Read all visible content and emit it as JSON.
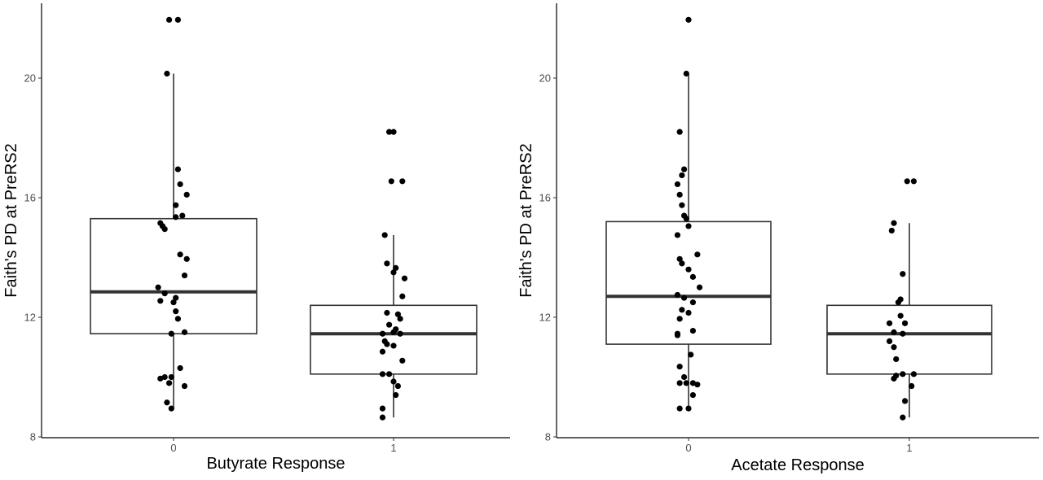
{
  "chart_data": [
    {
      "type": "box",
      "xlabel": "Butyrate Response",
      "ylabel": "Faith's PD at PreRS2",
      "ylim": [
        8,
        22.5
      ],
      "y_ticks": [
        "8",
        "12",
        "16",
        "20"
      ],
      "categories": [
        "0",
        "1"
      ],
      "boxes": [
        {
          "category": "0",
          "q1": 11.45,
          "median": 12.85,
          "q3": 15.3,
          "whisker_low": 8.95,
          "whisker_high": 20.15
        },
        {
          "category": "1",
          "q1": 10.1,
          "median": 11.45,
          "q3": 12.4,
          "whisker_low": 8.65,
          "whisker_high": 14.75
        }
      ],
      "points": [
        {
          "category": "0",
          "jitter": -0.02,
          "y": 21.95
        },
        {
          "category": "0",
          "jitter": 0.02,
          "y": 21.95
        },
        {
          "category": "0",
          "jitter": -0.03,
          "y": 20.15
        },
        {
          "category": "0",
          "jitter": 0.02,
          "y": 16.95
        },
        {
          "category": "0",
          "jitter": 0.03,
          "y": 16.45
        },
        {
          "category": "0",
          "jitter": 0.06,
          "y": 16.1
        },
        {
          "category": "0",
          "jitter": 0.01,
          "y": 15.75
        },
        {
          "category": "0",
          "jitter": 0.04,
          "y": 15.4
        },
        {
          "category": "0",
          "jitter": 0.01,
          "y": 15.35
        },
        {
          "category": "0",
          "jitter": -0.06,
          "y": 15.15
        },
        {
          "category": "0",
          "jitter": -0.05,
          "y": 15.05
        },
        {
          "category": "0",
          "jitter": -0.04,
          "y": 14.95
        },
        {
          "category": "0",
          "jitter": 0.03,
          "y": 14.1
        },
        {
          "category": "0",
          "jitter": 0.06,
          "y": 13.95
        },
        {
          "category": "0",
          "jitter": 0.05,
          "y": 13.4
        },
        {
          "category": "0",
          "jitter": -0.07,
          "y": 13.0
        },
        {
          "category": "0",
          "jitter": -0.04,
          "y": 12.8
        },
        {
          "category": "0",
          "jitter": 0.01,
          "y": 12.65
        },
        {
          "category": "0",
          "jitter": -0.06,
          "y": 12.55
        },
        {
          "category": "0",
          "jitter": 0.0,
          "y": 12.5
        },
        {
          "category": "0",
          "jitter": 0.01,
          "y": 12.2
        },
        {
          "category": "0",
          "jitter": 0.02,
          "y": 11.95
        },
        {
          "category": "0",
          "jitter": 0.05,
          "y": 11.5
        },
        {
          "category": "0",
          "jitter": -0.01,
          "y": 11.45
        },
        {
          "category": "0",
          "jitter": 0.03,
          "y": 10.3
        },
        {
          "category": "0",
          "jitter": -0.04,
          "y": 10.0
        },
        {
          "category": "0",
          "jitter": -0.01,
          "y": 10.0
        },
        {
          "category": "0",
          "jitter": -0.06,
          "y": 9.95
        },
        {
          "category": "0",
          "jitter": -0.02,
          "y": 9.8
        },
        {
          "category": "0",
          "jitter": 0.05,
          "y": 9.7
        },
        {
          "category": "0",
          "jitter": -0.03,
          "y": 9.15
        },
        {
          "category": "0",
          "jitter": -0.01,
          "y": 8.95
        },
        {
          "category": "1",
          "jitter": -0.02,
          "y": 18.2
        },
        {
          "category": "1",
          "jitter": 0.0,
          "y": 18.2
        },
        {
          "category": "1",
          "jitter": -0.01,
          "y": 16.55
        },
        {
          "category": "1",
          "jitter": 0.04,
          "y": 16.55
        },
        {
          "category": "1",
          "jitter": -0.04,
          "y": 14.75
        },
        {
          "category": "1",
          "jitter": -0.03,
          "y": 13.8
        },
        {
          "category": "1",
          "jitter": 0.01,
          "y": 13.65
        },
        {
          "category": "1",
          "jitter": 0.0,
          "y": 13.5
        },
        {
          "category": "1",
          "jitter": 0.05,
          "y": 13.3
        },
        {
          "category": "1",
          "jitter": 0.04,
          "y": 12.7
        },
        {
          "category": "1",
          "jitter": -0.03,
          "y": 12.15
        },
        {
          "category": "1",
          "jitter": 0.02,
          "y": 12.1
        },
        {
          "category": "1",
          "jitter": 0.03,
          "y": 11.95
        },
        {
          "category": "1",
          "jitter": -0.02,
          "y": 11.75
        },
        {
          "category": "1",
          "jitter": 0.01,
          "y": 11.6
        },
        {
          "category": "1",
          "jitter": 0.0,
          "y": 11.5
        },
        {
          "category": "1",
          "jitter": -0.05,
          "y": 11.45
        },
        {
          "category": "1",
          "jitter": 0.03,
          "y": 11.45
        },
        {
          "category": "1",
          "jitter": -0.04,
          "y": 11.2
        },
        {
          "category": "1",
          "jitter": -0.03,
          "y": 11.1
        },
        {
          "category": "1",
          "jitter": 0.0,
          "y": 11.05
        },
        {
          "category": "1",
          "jitter": -0.05,
          "y": 10.85
        },
        {
          "category": "1",
          "jitter": 0.04,
          "y": 10.55
        },
        {
          "category": "1",
          "jitter": -0.05,
          "y": 10.1
        },
        {
          "category": "1",
          "jitter": -0.02,
          "y": 10.1
        },
        {
          "category": "1",
          "jitter": 0.0,
          "y": 9.85
        },
        {
          "category": "1",
          "jitter": 0.02,
          "y": 9.7
        },
        {
          "category": "1",
          "jitter": 0.01,
          "y": 9.4
        },
        {
          "category": "1",
          "jitter": -0.05,
          "y": 8.95
        },
        {
          "category": "1",
          "jitter": -0.05,
          "y": 8.65
        }
      ],
      "grid": false,
      "legend": "none"
    },
    {
      "type": "box",
      "xlabel": "Acetate Response",
      "ylabel": "Faith's PD at PreRS2",
      "ylim": [
        8,
        22.5
      ],
      "y_ticks": [
        "8",
        "12",
        "16",
        "20"
      ],
      "categories": [
        "0",
        "1"
      ],
      "boxes": [
        {
          "category": "0",
          "q1": 11.1,
          "median": 12.7,
          "q3": 15.2,
          "whisker_low": 8.95,
          "whisker_high": 20.15
        },
        {
          "category": "1",
          "q1": 10.1,
          "median": 11.45,
          "q3": 12.4,
          "whisker_low": 8.65,
          "whisker_high": 15.15
        }
      ],
      "points": [
        {
          "category": "0",
          "jitter": 0.0,
          "y": 21.95
        },
        {
          "category": "0",
          "jitter": -0.01,
          "y": 20.15
        },
        {
          "category": "0",
          "jitter": -0.04,
          "y": 18.2
        },
        {
          "category": "0",
          "jitter": -0.02,
          "y": 16.95
        },
        {
          "category": "0",
          "jitter": -0.03,
          "y": 16.75
        },
        {
          "category": "0",
          "jitter": -0.05,
          "y": 16.45
        },
        {
          "category": "0",
          "jitter": -0.04,
          "y": 16.1
        },
        {
          "category": "0",
          "jitter": -0.03,
          "y": 15.75
        },
        {
          "category": "0",
          "jitter": -0.02,
          "y": 15.4
        },
        {
          "category": "0",
          "jitter": -0.01,
          "y": 15.3
        },
        {
          "category": "0",
          "jitter": 0.0,
          "y": 15.05
        },
        {
          "category": "0",
          "jitter": -0.05,
          "y": 14.75
        },
        {
          "category": "0",
          "jitter": 0.04,
          "y": 14.1
        },
        {
          "category": "0",
          "jitter": -0.04,
          "y": 13.95
        },
        {
          "category": "0",
          "jitter": -0.03,
          "y": 13.8
        },
        {
          "category": "0",
          "jitter": 0.0,
          "y": 13.6
        },
        {
          "category": "0",
          "jitter": 0.02,
          "y": 13.35
        },
        {
          "category": "0",
          "jitter": 0.05,
          "y": 13.0
        },
        {
          "category": "0",
          "jitter": -0.05,
          "y": 12.75
        },
        {
          "category": "0",
          "jitter": -0.02,
          "y": 12.65
        },
        {
          "category": "0",
          "jitter": 0.02,
          "y": 12.5
        },
        {
          "category": "0",
          "jitter": -0.03,
          "y": 12.25
        },
        {
          "category": "0",
          "jitter": 0.0,
          "y": 12.15
        },
        {
          "category": "0",
          "jitter": -0.04,
          "y": 11.95
        },
        {
          "category": "0",
          "jitter": 0.02,
          "y": 11.55
        },
        {
          "category": "0",
          "jitter": -0.05,
          "y": 11.45
        },
        {
          "category": "0",
          "jitter": -0.05,
          "y": 11.4
        },
        {
          "category": "0",
          "jitter": 0.01,
          "y": 10.75
        },
        {
          "category": "0",
          "jitter": -0.04,
          "y": 10.35
        },
        {
          "category": "0",
          "jitter": -0.02,
          "y": 10.0
        },
        {
          "category": "0",
          "jitter": -0.04,
          "y": 9.8
        },
        {
          "category": "0",
          "jitter": -0.01,
          "y": 9.8
        },
        {
          "category": "0",
          "jitter": 0.02,
          "y": 9.8
        },
        {
          "category": "0",
          "jitter": 0.04,
          "y": 9.75
        },
        {
          "category": "0",
          "jitter": 0.02,
          "y": 9.4
        },
        {
          "category": "0",
          "jitter": -0.04,
          "y": 8.95
        },
        {
          "category": "0",
          "jitter": 0.0,
          "y": 8.95
        },
        {
          "category": "1",
          "jitter": -0.01,
          "y": 16.55
        },
        {
          "category": "1",
          "jitter": 0.02,
          "y": 16.55
        },
        {
          "category": "1",
          "jitter": -0.07,
          "y": 15.15
        },
        {
          "category": "1",
          "jitter": -0.08,
          "y": 14.9
        },
        {
          "category": "1",
          "jitter": -0.03,
          "y": 13.45
        },
        {
          "category": "1",
          "jitter": -0.04,
          "y": 12.6
        },
        {
          "category": "1",
          "jitter": -0.05,
          "y": 12.5
        },
        {
          "category": "1",
          "jitter": -0.04,
          "y": 12.05
        },
        {
          "category": "1",
          "jitter": -0.02,
          "y": 11.8
        },
        {
          "category": "1",
          "jitter": -0.09,
          "y": 11.8
        },
        {
          "category": "1",
          "jitter": -0.07,
          "y": 11.5
        },
        {
          "category": "1",
          "jitter": -0.03,
          "y": 11.45
        },
        {
          "category": "1",
          "jitter": -0.09,
          "y": 11.2
        },
        {
          "category": "1",
          "jitter": -0.07,
          "y": 11.0
        },
        {
          "category": "1",
          "jitter": -0.06,
          "y": 10.6
        },
        {
          "category": "1",
          "jitter": -0.03,
          "y": 10.1
        },
        {
          "category": "1",
          "jitter": -0.06,
          "y": 10.05
        },
        {
          "category": "1",
          "jitter": -0.07,
          "y": 9.95
        },
        {
          "category": "1",
          "jitter": 0.02,
          "y": 10.1
        },
        {
          "category": "1",
          "jitter": 0.01,
          "y": 9.7
        },
        {
          "category": "1",
          "jitter": -0.02,
          "y": 9.2
        },
        {
          "category": "1",
          "jitter": -0.03,
          "y": 8.65
        }
      ],
      "grid": false,
      "legend": "none"
    }
  ]
}
